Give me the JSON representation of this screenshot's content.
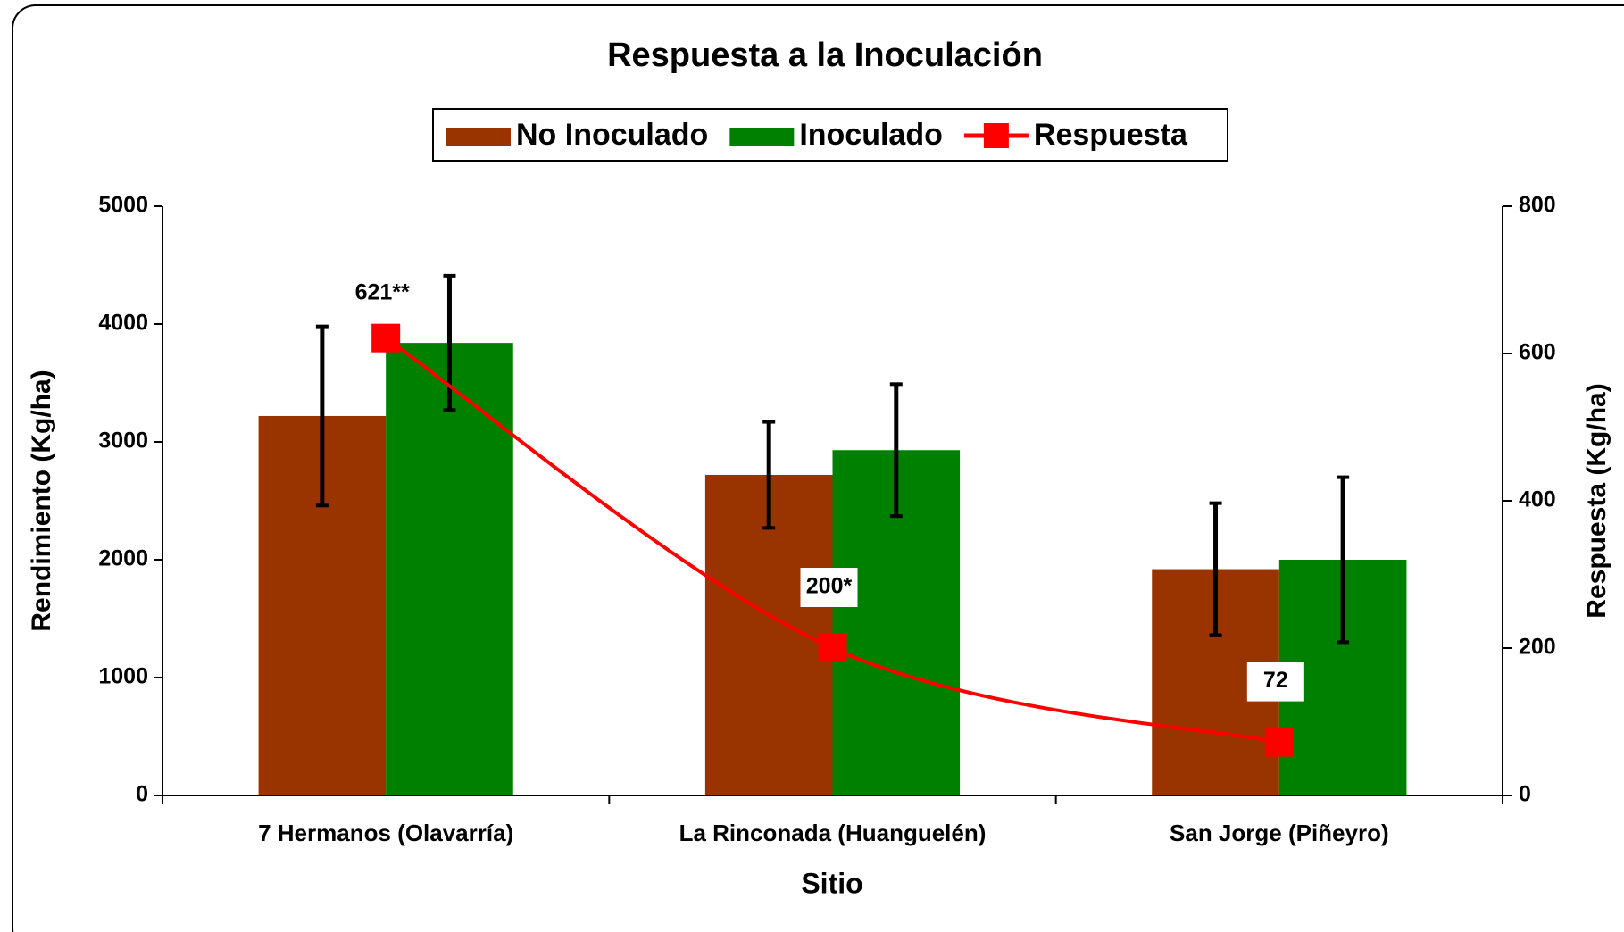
{
  "chart_data": {
    "type": "bar",
    "title": "Respuesta a la Inoculación",
    "xlabel": "Sitio",
    "ylabel": "Rendimiento (Kg/ha)",
    "y2label": "Respuesta (Kg/ha)",
    "categories": [
      "7 Hermanos (Olavarría)",
      "La Rinconada (Huanguelén)",
      "San Jorge (Piñeyro)"
    ],
    "series": [
      {
        "name": "No Inoculado",
        "type": "bar",
        "color": "#993300",
        "values": [
          3220,
          2720,
          1920
        ],
        "errors": [
          760,
          450,
          560
        ]
      },
      {
        "name": "Inoculado",
        "type": "bar",
        "color": "#008000",
        "values": [
          3840,
          2930,
          2000
        ],
        "errors": [
          570,
          560,
          700
        ]
      },
      {
        "name": "Respuesta",
        "type": "line",
        "axis": "y2",
        "color": "#ff0000",
        "values": [
          621,
          200,
          72
        ],
        "value_labels": [
          "621**",
          "200*",
          "72"
        ]
      }
    ],
    "ylim": [
      0,
      5000
    ],
    "yticks": [
      0,
      1000,
      2000,
      3000,
      4000,
      5000
    ],
    "y2lim": [
      0,
      800
    ],
    "y2ticks": [
      0,
      200,
      400,
      600,
      800
    ],
    "grid": false,
    "legend": "top"
  }
}
